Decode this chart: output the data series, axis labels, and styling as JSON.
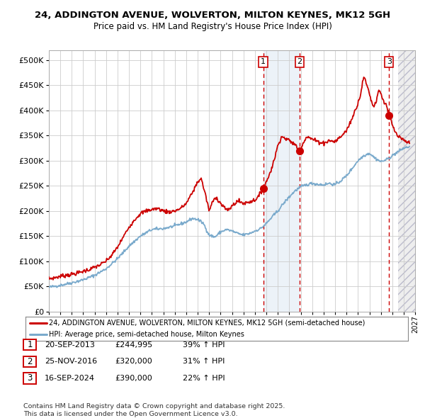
{
  "title": "24, ADDINGTON AVENUE, WOLVERTON, MILTON KEYNES, MK12 5GH",
  "subtitle": "Price paid vs. HM Land Registry's House Price Index (HPI)",
  "legend_red": "24, ADDINGTON AVENUE, WOLVERTON, MILTON KEYNES, MK12 5GH (semi-detached house)",
  "legend_blue": "HPI: Average price, semi-detached house, Milton Keynes",
  "footer1": "Contains HM Land Registry data © Crown copyright and database right 2025.",
  "footer2": "This data is licensed under the Open Government Licence v3.0.",
  "purchases": [
    {
      "num": 1,
      "date": "20-SEP-2013",
      "price": 244995,
      "pct": "39%",
      "dir": "↑"
    },
    {
      "num": 2,
      "date": "25-NOV-2016",
      "price": 320000,
      "pct": "31%",
      "dir": "↑"
    },
    {
      "num": 3,
      "date": "16-SEP-2024",
      "price": 390000,
      "pct": "22%",
      "dir": "↑"
    }
  ],
  "purchase_dates_decimal": [
    2013.72,
    2016.9,
    2024.71
  ],
  "purchase_prices": [
    244995,
    320000,
    390000
  ],
  "shaded_region": [
    2013.72,
    2016.9
  ],
  "hatch_region_start": 2025.5,
  "xlim": [
    1995.0,
    2027.0
  ],
  "ylim": [
    0,
    520000
  ],
  "yticks": [
    0,
    50000,
    100000,
    150000,
    200000,
    250000,
    300000,
    350000,
    400000,
    450000,
    500000
  ],
  "ytick_labels": [
    "£0",
    "£50K",
    "£100K",
    "£150K",
    "£200K",
    "£250K",
    "£300K",
    "£350K",
    "£400K",
    "£450K",
    "£500K"
  ],
  "red_color": "#cc0000",
  "blue_color": "#7aaacc",
  "bg_color": "#ffffff",
  "grid_color": "#cccccc"
}
